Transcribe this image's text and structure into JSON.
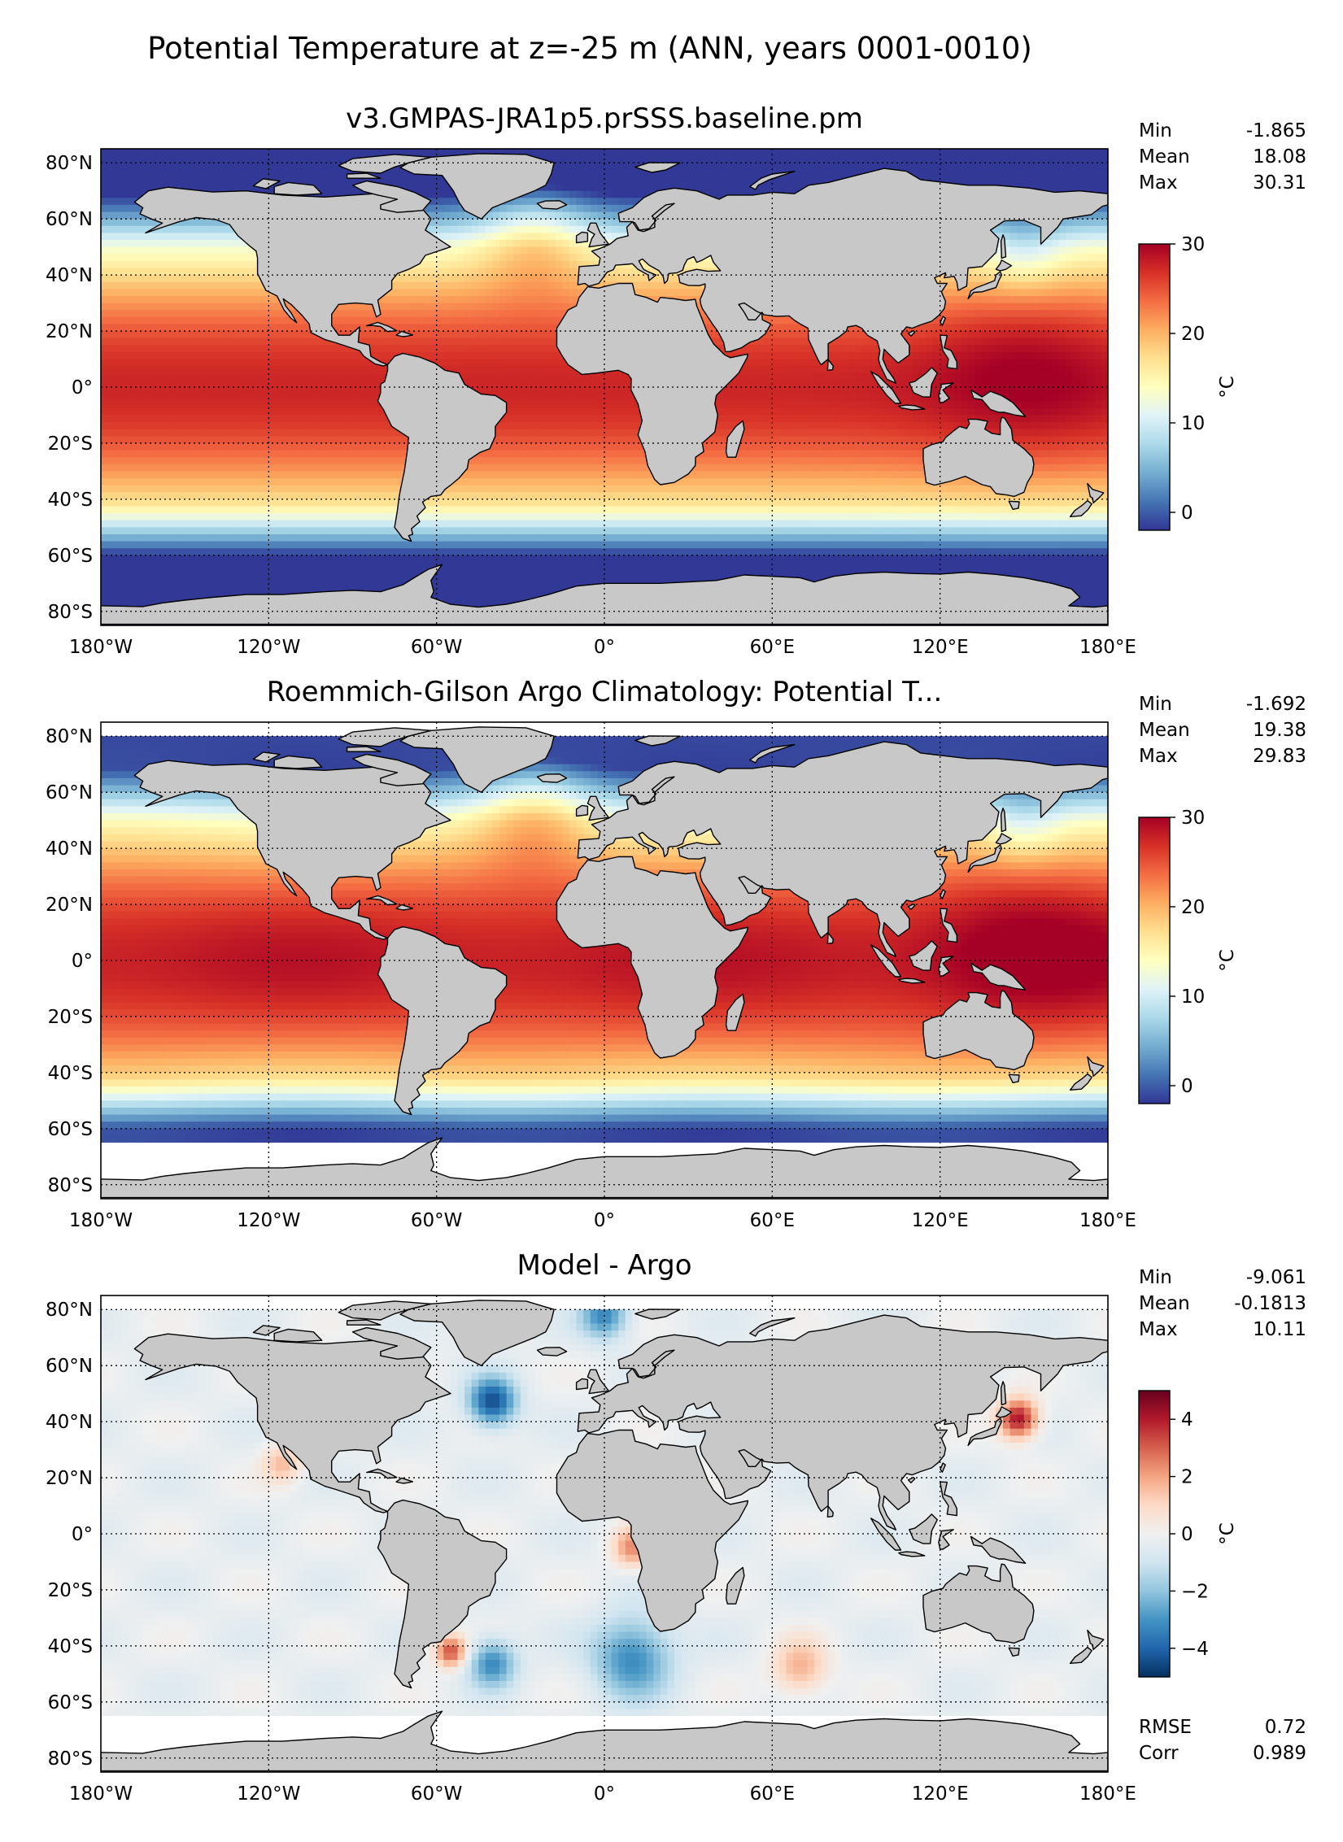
{
  "figure": {
    "title": "Potential Temperature at z=-25 m (ANN, years 0001-0010)"
  },
  "chart_data": [
    {
      "type": "heatmap",
      "title": "v3.GMPAS-JRA1p5.prSSS.baseline.pm",
      "projection": "PlateCarree",
      "xlim": [
        -180,
        180
      ],
      "ylim": [
        -85,
        85
      ],
      "x_ticks": [
        "180°W",
        "120°W",
        "60°W",
        "0°",
        "60°E",
        "120°E",
        "180°E"
      ],
      "y_ticks": [
        "80°N",
        "60°N",
        "40°N",
        "20°N",
        "0°",
        "20°S",
        "40°S",
        "60°S",
        "80°S"
      ],
      "stats": [
        {
          "label": "Min",
          "value": "-1.865"
        },
        {
          "label": "Mean",
          "value": "18.08"
        },
        {
          "label": "Max",
          "value": "30.31"
        }
      ],
      "colorbar": {
        "label": "°C",
        "vmin": -2,
        "vmax": 30,
        "ticks": [
          0,
          10,
          20,
          30
        ],
        "cmap": [
          "#313695",
          "#4575b4",
          "#74add1",
          "#abd9e9",
          "#e0f3f8",
          "#ffffbf",
          "#fee090",
          "#fdae61",
          "#f46d43",
          "#d73027",
          "#a50026"
        ]
      },
      "colors": {
        "land": "#c8c8c8",
        "missing": "#ffffff"
      }
    },
    {
      "type": "heatmap",
      "title": "Roemmich-Gilson Argo Climatology: Potential T...",
      "projection": "PlateCarree",
      "xlim": [
        -180,
        180
      ],
      "ylim": [
        -85,
        85
      ],
      "data_lat_range": [
        -65,
        80
      ],
      "x_ticks": [
        "180°W",
        "120°W",
        "60°W",
        "0°",
        "60°E",
        "120°E",
        "180°E"
      ],
      "y_ticks": [
        "80°N",
        "60°N",
        "40°N",
        "20°N",
        "0°",
        "20°S",
        "40°S",
        "60°S",
        "80°S"
      ],
      "stats": [
        {
          "label": "Min",
          "value": "-1.692"
        },
        {
          "label": "Mean",
          "value": "19.38"
        },
        {
          "label": "Max",
          "value": "29.83"
        }
      ],
      "colorbar": {
        "label": "°C",
        "vmin": -2,
        "vmax": 30,
        "ticks": [
          0,
          10,
          20,
          30
        ],
        "cmap": [
          "#313695",
          "#4575b4",
          "#74add1",
          "#abd9e9",
          "#e0f3f8",
          "#ffffbf",
          "#fee090",
          "#fdae61",
          "#f46d43",
          "#d73027",
          "#a50026"
        ]
      },
      "colors": {
        "land": "#c8c8c8",
        "missing": "#ffffff"
      }
    },
    {
      "type": "heatmap",
      "title": "Model - Argo",
      "projection": "PlateCarree",
      "xlim": [
        -180,
        180
      ],
      "ylim": [
        -85,
        85
      ],
      "data_lat_range": [
        -65,
        80
      ],
      "x_ticks": [
        "180°W",
        "120°W",
        "60°W",
        "0°",
        "60°E",
        "120°E",
        "180°E"
      ],
      "y_ticks": [
        "80°N",
        "60°N",
        "40°N",
        "20°N",
        "0°",
        "20°S",
        "40°S",
        "60°S",
        "80°S"
      ],
      "stats": [
        {
          "label": "Min",
          "value": "-9.061"
        },
        {
          "label": "Mean",
          "value": "-0.1813"
        },
        {
          "label": "Max",
          "value": "10.11"
        }
      ],
      "extra_stats": [
        {
          "label": "RMSE",
          "value": "0.72"
        },
        {
          "label": "Corr",
          "value": "0.989"
        }
      ],
      "colorbar": {
        "label": "°C",
        "vmin": -5,
        "vmax": 5,
        "ticks": [
          -4,
          -2,
          0,
          2,
          4
        ],
        "tick_labels": [
          "−4",
          "−2",
          "0",
          "2",
          "4"
        ],
        "cmap": [
          "#053061",
          "#2166ac",
          "#4393c3",
          "#92c5de",
          "#d1e5f0",
          "#f0f0f0",
          "#fddbc7",
          "#f4a582",
          "#d6604d",
          "#b2182b",
          "#67001f"
        ]
      },
      "colors": {
        "land": "#c8c8c8",
        "missing": "#ffffff"
      }
    }
  ]
}
